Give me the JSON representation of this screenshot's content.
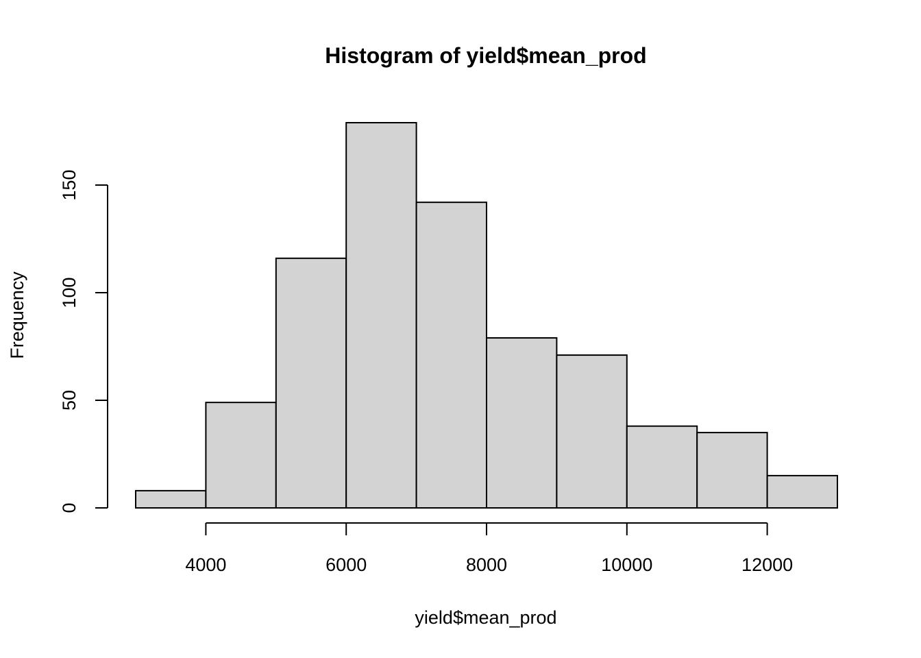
{
  "chart_data": {
    "type": "bar",
    "title": "Histogram of yield$mean_prod",
    "xlabel": "yield$mean_prod",
    "ylabel": "Frequency",
    "bins": [
      {
        "x0": 3000,
        "x1": 4000,
        "count": 8
      },
      {
        "x0": 4000,
        "x1": 5000,
        "count": 49
      },
      {
        "x0": 5000,
        "x1": 6000,
        "count": 116
      },
      {
        "x0": 6000,
        "x1": 7000,
        "count": 179
      },
      {
        "x0": 7000,
        "x1": 8000,
        "count": 142
      },
      {
        "x0": 8000,
        "x1": 9000,
        "count": 79
      },
      {
        "x0": 9000,
        "x1": 10000,
        "count": 71
      },
      {
        "x0": 10000,
        "x1": 11000,
        "count": 38
      },
      {
        "x0": 11000,
        "x1": 12000,
        "count": 35
      },
      {
        "x0": 12000,
        "x1": 13000,
        "count": 15
      }
    ],
    "xlim": [
      3000,
      13000
    ],
    "ylim": [
      0,
      179
    ],
    "xticks": [
      4000,
      6000,
      8000,
      10000,
      12000
    ],
    "xtick_labels": [
      "4000",
      "6000",
      "8000",
      "10000",
      "12000"
    ],
    "yticks": [
      0,
      50,
      100,
      150
    ],
    "ytick_labels": [
      "0",
      "50",
      "100",
      "150"
    ],
    "grid": false,
    "bar_color": "#d3d3d3",
    "edge_color": "#000000"
  }
}
